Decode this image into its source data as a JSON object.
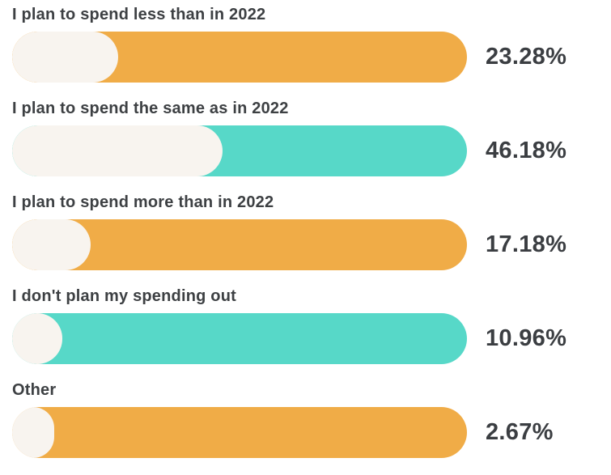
{
  "chart_data": {
    "type": "bar",
    "orientation": "horizontal",
    "title": "",
    "xlabel": "",
    "ylabel": "",
    "xlim": [
      0,
      100
    ],
    "grid": false,
    "legend": false,
    "categories": [
      "I plan to spend less than in 2022",
      "I plan to spend the same as in 2022",
      "I plan to spend more than in 2022",
      "I don't plan my spending out",
      "Other"
    ],
    "values": [
      23.28,
      46.18,
      17.18,
      10.96,
      2.67
    ],
    "value_labels": [
      "23.28%",
      "46.18%",
      "17.18%",
      "10.96%",
      "2.67%"
    ],
    "bar_colors": [
      "#F0AC47",
      "#57D8C8",
      "#F0AC47",
      "#57D8C8",
      "#F0AC47"
    ],
    "fill_color": "#F8F4EF",
    "label_color": "#3D4043",
    "value_color": "#3B3E42"
  },
  "rows": [
    {
      "label": "I plan to spend less than in 2022",
      "value": 23.28,
      "value_label": "23.28%",
      "bar_color": "#F0AC47"
    },
    {
      "label": "I plan to spend the same as in 2022",
      "value": 46.18,
      "value_label": "46.18%",
      "bar_color": "#57D8C8"
    },
    {
      "label": "I plan to spend more than in 2022",
      "value": 17.18,
      "value_label": "17.18%",
      "bar_color": "#F0AC47"
    },
    {
      "label": "I don't plan my spending out",
      "value": 10.96,
      "value_label": "10.96%",
      "bar_color": "#57D8C8"
    },
    {
      "label": "Other",
      "value": 2.67,
      "value_label": "2.67%",
      "bar_color": "#F0AC47"
    }
  ]
}
